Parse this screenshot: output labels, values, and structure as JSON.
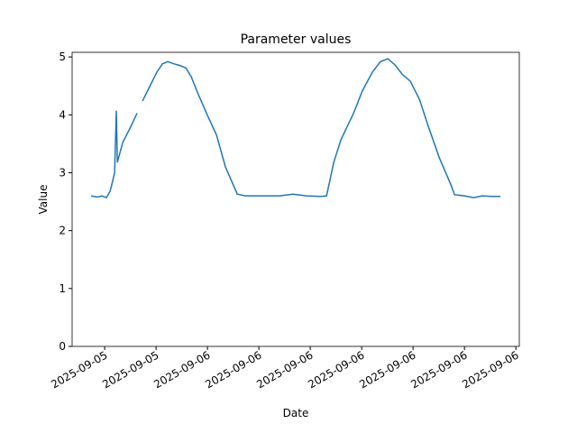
{
  "chart_data": {
    "type": "line",
    "title": "Parameter values",
    "x_label": "Date",
    "y_label": "Value",
    "x": [
      -0.79,
      -0.42,
      -0.16,
      0.1,
      0.32,
      0.58,
      0.68,
      0.74,
      1.05,
      1.53,
      1.89,
      2.05,
      2.21,
      2.63,
      3.05,
      3.37,
      3.68,
      4.05,
      4.42,
      4.74,
      5.05,
      5.47,
      6.0,
      6.53,
      7.05,
      7.74,
      8.21,
      9.16,
      10.2,
      11.0,
      11.79,
      12.58,
      12.95,
      13.37,
      13.79,
      14.53,
      15.05,
      15.63,
      16.1,
      16.53,
      16.95,
      17.37,
      17.84,
      18.37,
      18.89,
      19.53,
      20.21,
      20.42,
      21.0,
      21.53,
      22.05,
      22.58,
      23.1
    ],
    "series": [
      {
        "name": "Value",
        "color": "#1f77b4",
        "values": [
          2.6,
          2.58,
          2.6,
          2.57,
          2.68,
          3.0,
          4.07,
          3.18,
          3.52,
          3.8,
          4.03,
          null,
          4.24,
          4.49,
          4.74,
          4.88,
          4.92,
          4.88,
          4.85,
          4.81,
          4.66,
          4.35,
          3.99,
          3.65,
          3.1,
          2.63,
          2.6,
          2.6,
          2.6,
          2.63,
          2.6,
          2.59,
          2.6,
          3.18,
          3.57,
          4.03,
          4.42,
          4.74,
          4.92,
          4.97,
          4.86,
          4.7,
          4.58,
          4.27,
          3.8,
          3.26,
          2.79,
          2.62,
          2.6,
          2.57,
          2.6,
          2.59,
          2.59
        ]
      }
    ],
    "xlim": [
      -1.9,
      24.2
    ],
    "ylim": [
      0,
      5.08
    ],
    "xticks": [
      {
        "value": 0,
        "label": "2025-09-05"
      },
      {
        "value": 3,
        "label": "2025-09-05"
      },
      {
        "value": 6,
        "label": "2025-09-06"
      },
      {
        "value": 9,
        "label": "2025-09-06"
      },
      {
        "value": 12,
        "label": "2025-09-06"
      },
      {
        "value": 15,
        "label": "2025-09-06"
      },
      {
        "value": 18,
        "label": "2025-09-06"
      },
      {
        "value": 21,
        "label": "2025-09-06"
      },
      {
        "value": 24,
        "label": "2025-09-06"
      }
    ],
    "yticks": [
      0,
      1,
      2,
      3,
      4,
      5
    ]
  }
}
